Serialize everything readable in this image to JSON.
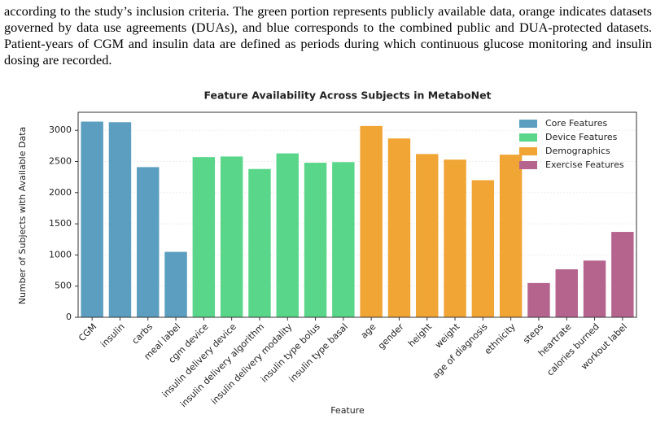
{
  "paragraph": "according to the study’s inclusion criteria. The green portion represents publicly available data, orange indicates datasets governed by data use agreements (DUAs), and blue corresponds to the combined public and DUA-protected datasets.  Patient-years of CGM and insulin data are defined as periods during which continuous glucose monitoring and insulin dosing are recorded.",
  "chart_data": {
    "type": "bar",
    "title": "Feature Availability Across Subjects in MetaboNet",
    "x_label": "Feature",
    "y_label": "Number of Subjects with Available Data",
    "categories": [
      "CGM",
      "insulin",
      "carbs",
      "meal label",
      "cgm device",
      "insulin delivery device",
      "insulin delivery algorithm",
      "insulin delivery modality",
      "insulin type bolus",
      "insulin type basal",
      "age",
      "gender",
      "height",
      "weight",
      "age of diagnosis",
      "ethnicity",
      "steps",
      "heartrate",
      "calories burned",
      "workout label"
    ],
    "series": [
      {
        "name": "Core Features",
        "color": "#5b9ebf",
        "values": [
          3140,
          3130,
          2410,
          1050,
          null,
          null,
          null,
          null,
          null,
          null,
          null,
          null,
          null,
          null,
          null,
          null,
          null,
          null,
          null,
          null
        ]
      },
      {
        "name": "Device Features",
        "color": "#5ad68a",
        "values": [
          null,
          null,
          null,
          null,
          2570,
          2580,
          2380,
          2630,
          2480,
          2490,
          null,
          null,
          null,
          null,
          null,
          null,
          null,
          null,
          null,
          null
        ]
      },
      {
        "name": "Demographics",
        "color": "#f0a535",
        "values": [
          null,
          null,
          null,
          null,
          null,
          null,
          null,
          null,
          null,
          null,
          3070,
          2870,
          2620,
          2530,
          2200,
          2610,
          null,
          null,
          null,
          null
        ]
      },
      {
        "name": "Exercise Features",
        "color": "#b5648e",
        "values": [
          null,
          null,
          null,
          null,
          null,
          null,
          null,
          null,
          null,
          null,
          null,
          null,
          null,
          null,
          null,
          null,
          550,
          770,
          910,
          1370
        ]
      }
    ],
    "ylim": [
      0,
      3290
    ],
    "yticks": [
      0,
      500,
      1000,
      1500,
      2000,
      2500,
      3000
    ],
    "grid": true,
    "legend": "upper-right"
  }
}
